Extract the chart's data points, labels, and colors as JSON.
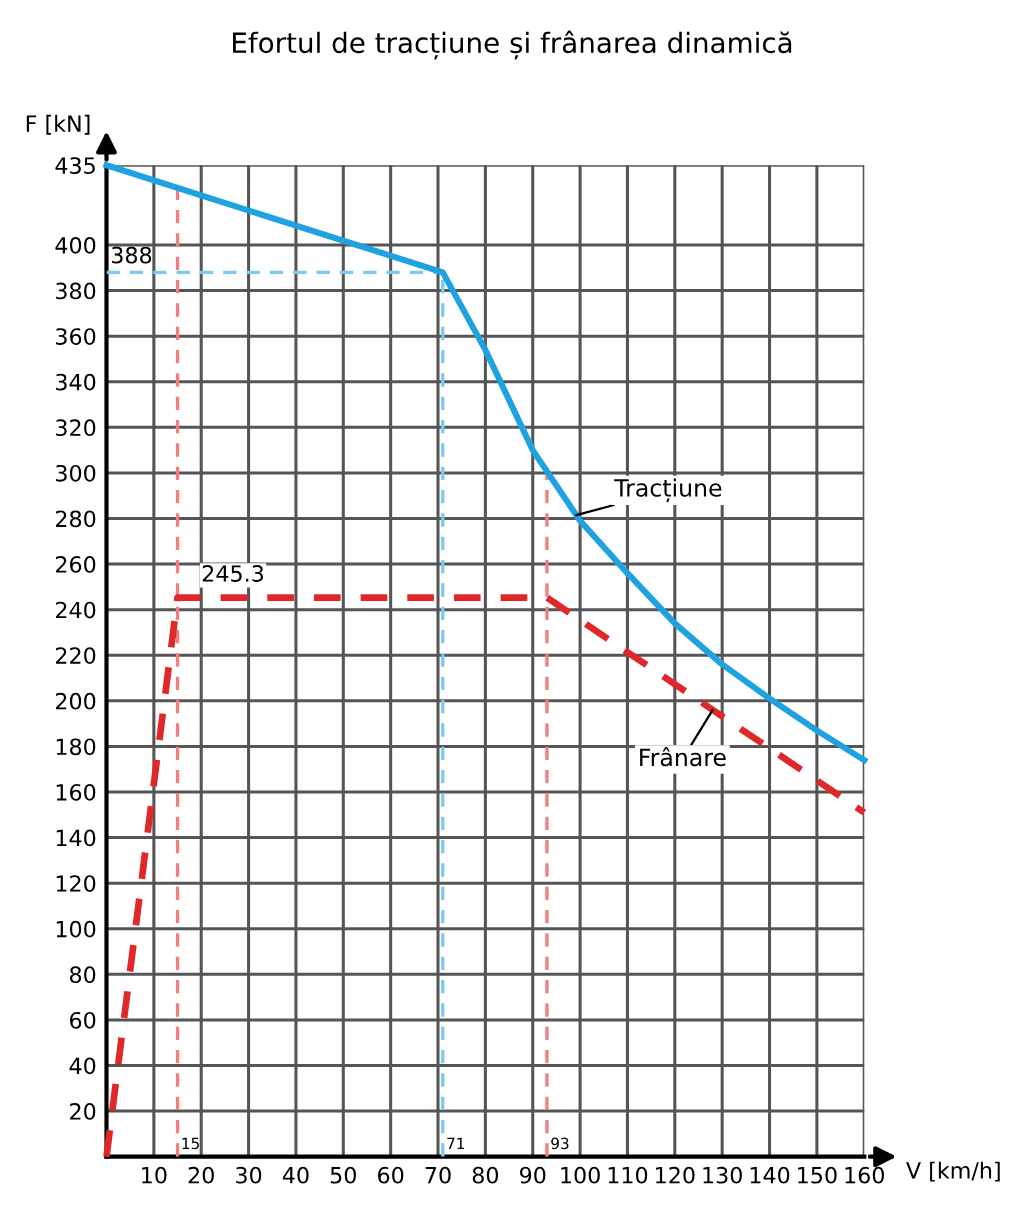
{
  "chart_data": {
    "type": "line",
    "title": "Efortul de tracțiune și frânarea dinamică",
    "xlabel": "V [km/h]",
    "ylabel": "F [kN]",
    "xlim": [
      0,
      160
    ],
    "ylim": [
      0,
      435
    ],
    "xticks": [
      10,
      20,
      30,
      40,
      50,
      60,
      70,
      80,
      90,
      100,
      110,
      120,
      130,
      140,
      150,
      160
    ],
    "yticks": [
      20,
      40,
      60,
      80,
      100,
      120,
      140,
      160,
      180,
      200,
      220,
      240,
      260,
      280,
      300,
      320,
      340,
      360,
      380,
      400,
      435
    ],
    "grid": true,
    "legend": false,
    "series": [
      {
        "name": "Tracțiune",
        "color": "#1fa3e0",
        "line_style": "solid",
        "x": [
          0,
          71,
          80,
          90,
          100,
          110,
          120,
          130,
          140,
          150,
          160
        ],
        "values": [
          435,
          388,
          354,
          310,
          279,
          256,
          234,
          216,
          201,
          187,
          174
        ]
      },
      {
        "name": "Frânare",
        "color": "#e0282a",
        "line_style": "dashed",
        "x": [
          0,
          15,
          93,
          160
        ],
        "values": [
          0,
          245.3,
          245.3,
          151
        ]
      }
    ],
    "ref_lines": [
      {
        "axis": "y",
        "value": 388,
        "label": "388",
        "color": "#7ccbef",
        "line_style": "dashed"
      },
      {
        "axis": "x",
        "value": 71,
        "label": "71",
        "color": "#7ccbef",
        "line_style": "dashed"
      },
      {
        "axis": "x",
        "value": 15,
        "label": "15",
        "color": "#f08080",
        "line_style": "dashed"
      },
      {
        "axis": "x",
        "value": 93,
        "label": "93",
        "color": "#f08080",
        "line_style": "dashed"
      }
    ],
    "annotations": [
      {
        "text": "245.3",
        "x": 20,
        "y": 245.3
      }
    ]
  }
}
